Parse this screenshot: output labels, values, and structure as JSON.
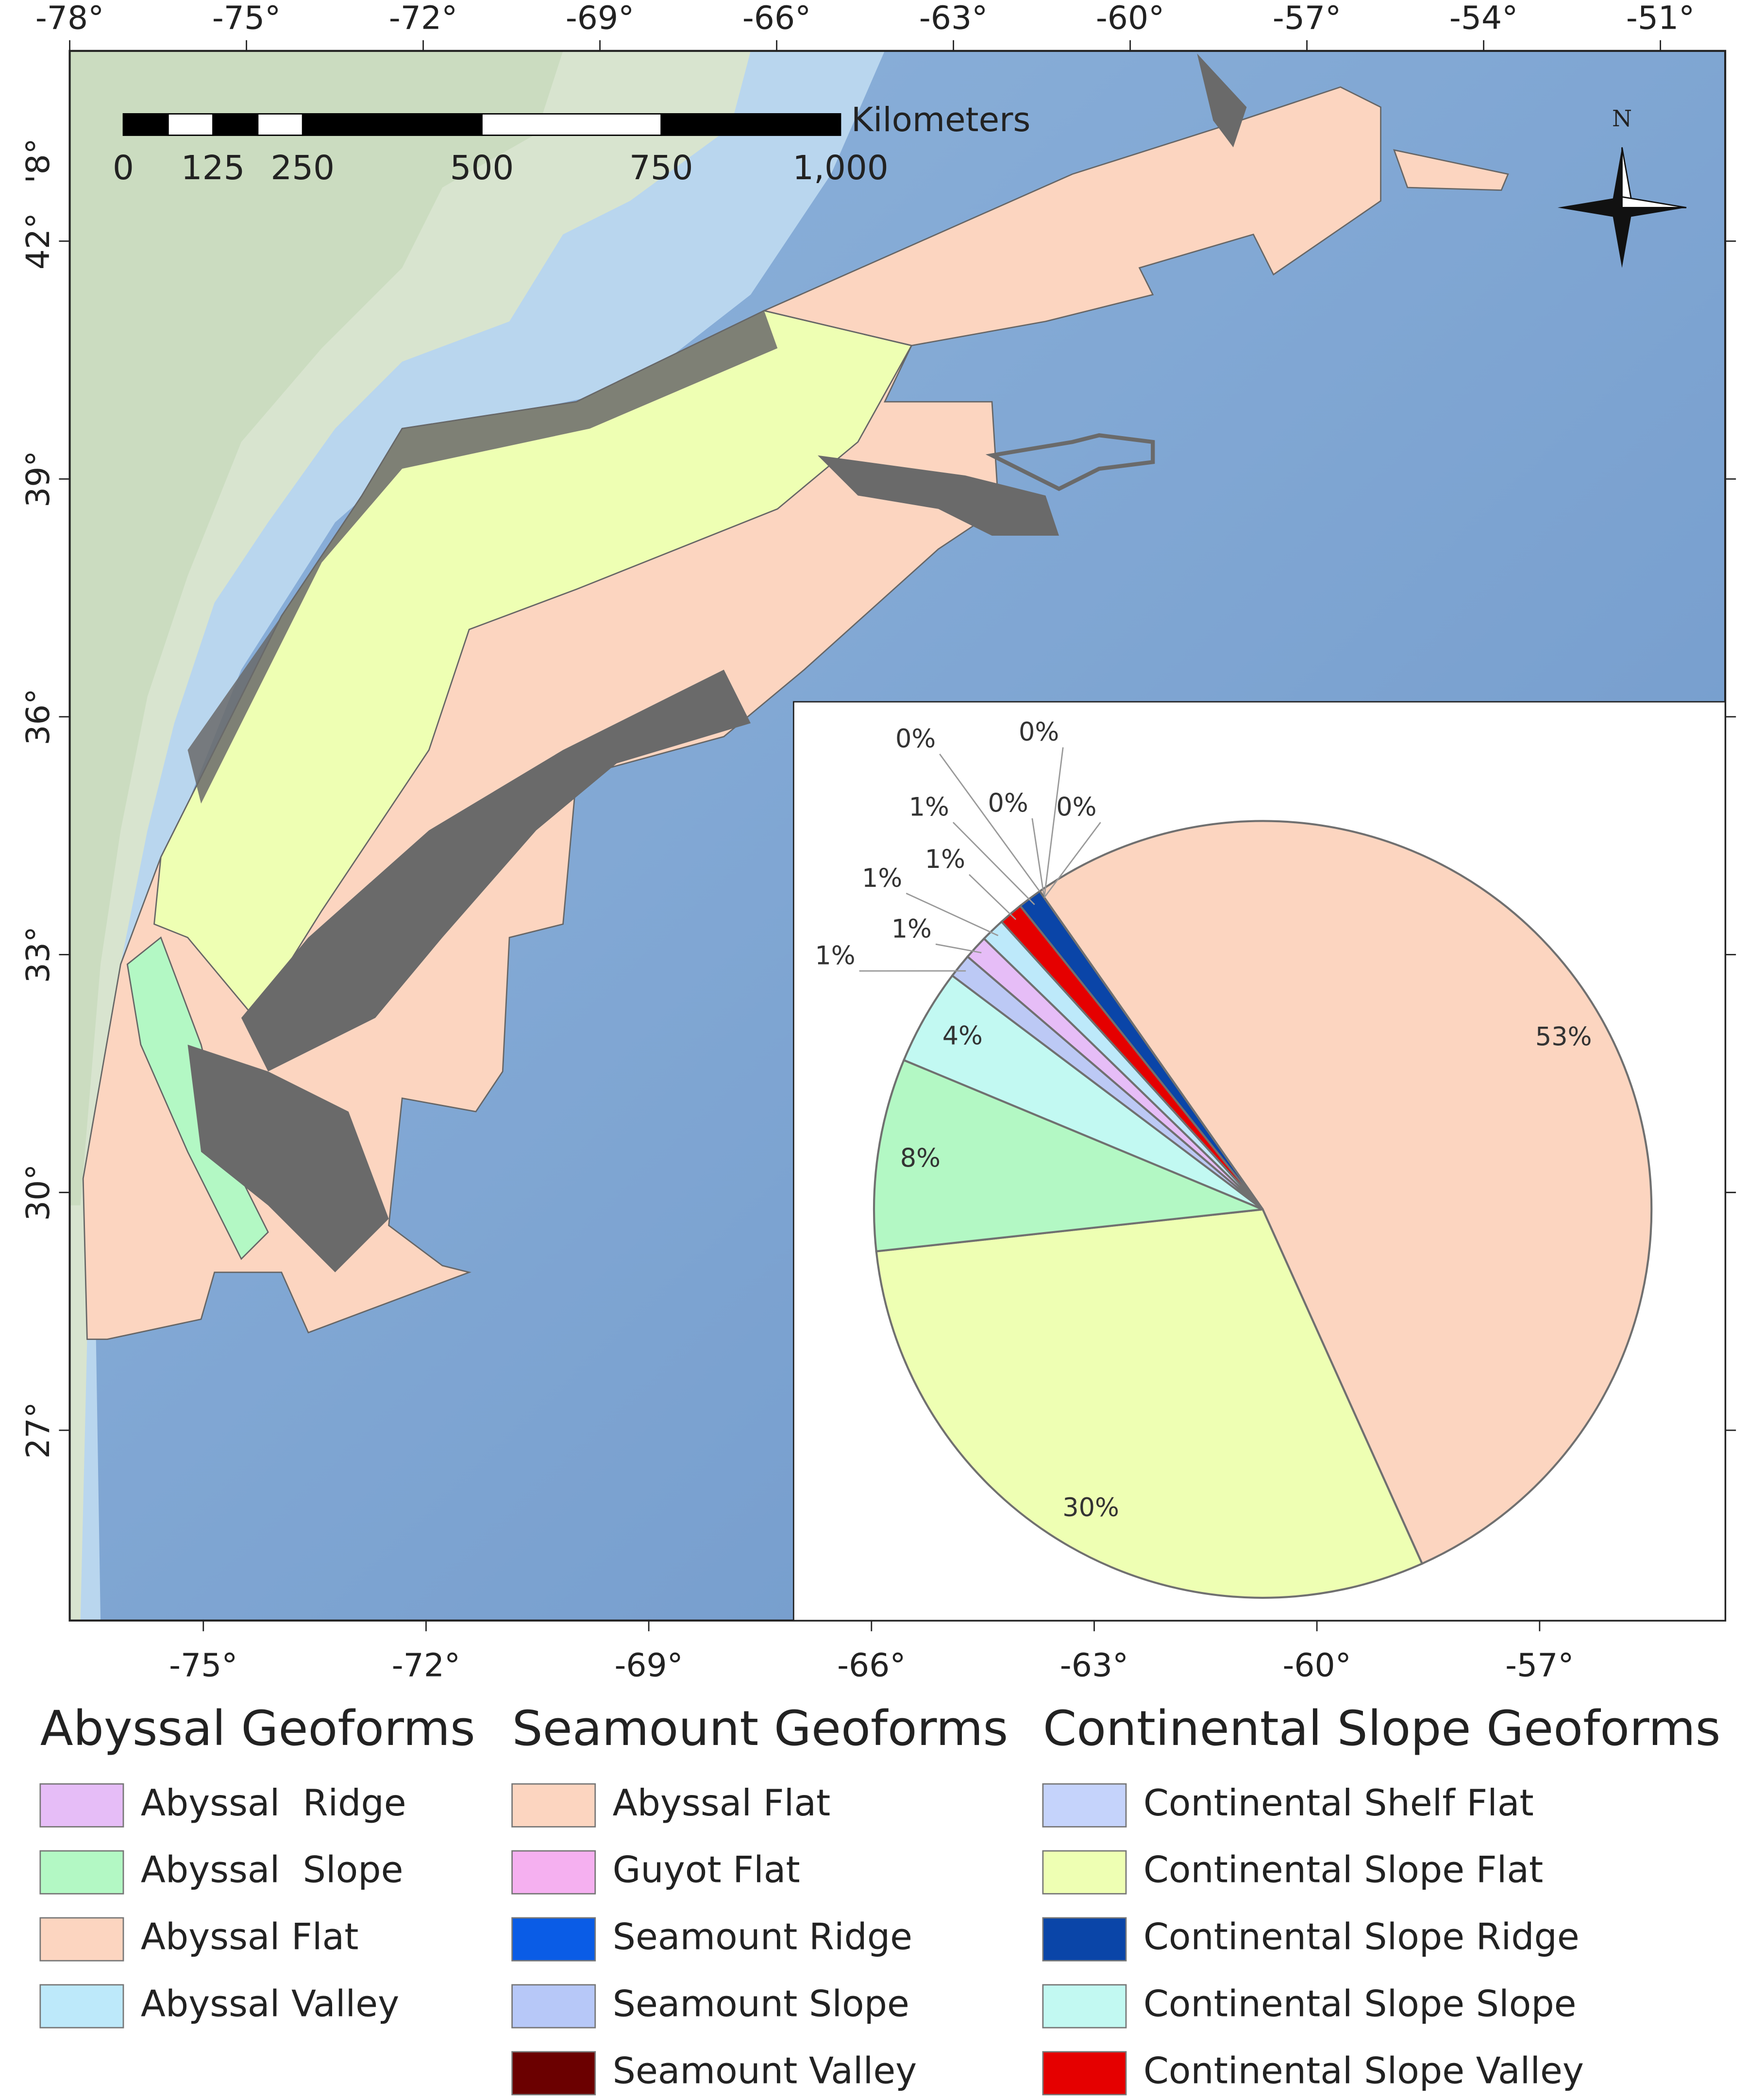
{
  "map": {
    "top_axis": {
      "xlim": [
        -78,
        -49.9
      ],
      "xticks": [
        {
          "value": -78,
          "label": "-78°"
        },
        {
          "value": -75,
          "label": "-75°"
        },
        {
          "value": -72,
          "label": "-72°"
        },
        {
          "value": -69,
          "label": "-69°"
        },
        {
          "value": -66,
          "label": "-66°"
        },
        {
          "value": -63,
          "label": "-63°"
        },
        {
          "value": -60,
          "label": "-60°"
        },
        {
          "value": -57,
          "label": "-57°"
        },
        {
          "value": -54,
          "label": "-54°"
        },
        {
          "value": -51,
          "label": "-51°"
        }
      ]
    },
    "bottom_axis": {
      "xlim": [
        -76.8,
        -54.5
      ],
      "xticks": [
        {
          "value": -75,
          "label": "-75°"
        },
        {
          "value": -72,
          "label": "-72°"
        },
        {
          "value": -69,
          "label": "-69°"
        },
        {
          "value": -66,
          "label": "-66°"
        },
        {
          "value": -63,
          "label": "-63°"
        },
        {
          "value": -60,
          "label": "-60°"
        },
        {
          "value": -57,
          "label": "-57°"
        }
      ]
    },
    "left_axis": {
      "ylim": [
        24.6,
        44.4
      ],
      "yticks": [
        {
          "value": 27,
          "label": "27°"
        },
        {
          "value": 30,
          "label": "30°"
        },
        {
          "value": 33,
          "label": "33°"
        },
        {
          "value": 36,
          "label": "36°"
        },
        {
          "value": 39,
          "label": "39°"
        },
        {
          "value": 42,
          "label": "42°"
        }
      ]
    },
    "clipped_label": "'8°",
    "scale_bar": {
      "unit": "Kilometers",
      "lim": [
        0,
        1000
      ],
      "ticks": [
        0,
        125,
        250,
        500,
        750,
        {
          "value": 1000,
          "label": "1,000"
        }
      ]
    },
    "north": "N"
  },
  "chart_data": {
    "type": "pie",
    "values": [
      53,
      30,
      8,
      4,
      1,
      1,
      1,
      1,
      1,
      0,
      0,
      0,
      0
    ],
    "value_labels": [
      "53%",
      "30%",
      "8%",
      "4%",
      "1%",
      "1%",
      "1%",
      "1%",
      "1%",
      "0%",
      "0%",
      "0%",
      "0%"
    ],
    "colors": [
      "#fcd5c0",
      "#eeffb3",
      "#b3f8c4",
      "#c2f9f2",
      "#bcc9f5",
      "#e6bdf7",
      "#bde9fa",
      "#e50000",
      "#0a45a8",
      "#0a5ce6",
      "#f5b0f0",
      "#6b0000",
      "#c5d3fb"
    ]
  },
  "legend": {
    "groups": [
      {
        "title": "Abyssal Geoforms",
        "items": [
          {
            "label": "Abyssal  Ridge",
            "color": "#e6bdf7"
          },
          {
            "label": "Abyssal  Slope",
            "color": "#b3f8c4"
          },
          {
            "label": "Abyssal Flat",
            "color": "#fcd5c0"
          },
          {
            "label": "Abyssal Valley",
            "color": "#bde9fa"
          }
        ]
      },
      {
        "title": "Seamount Geoforms",
        "items": [
          {
            "label": "Abyssal Flat",
            "color": "#fcd5c0"
          },
          {
            "label": "Guyot Flat",
            "color": "#f5b0f0"
          },
          {
            "label": "Seamount Ridge",
            "color": "#0a5ce6"
          },
          {
            "label": "Seamount Slope",
            "color": "#b7c8f8"
          },
          {
            "label": "Seamount Valley",
            "color": "#6b0000"
          }
        ]
      },
      {
        "title": "Continental Slope Geoforms",
        "items": [
          {
            "label": "Continental Shelf Flat",
            "color": "#c5d3fb"
          },
          {
            "label": "Continental Slope Flat",
            "color": "#eeffb3"
          },
          {
            "label": "Continental Slope Ridge",
            "color": "#0a45a8"
          },
          {
            "label": "Continental Slope Slope",
            "color": "#c2f9f2"
          },
          {
            "label": "Continental Slope Valley",
            "color": "#e50000"
          }
        ]
      }
    ]
  }
}
